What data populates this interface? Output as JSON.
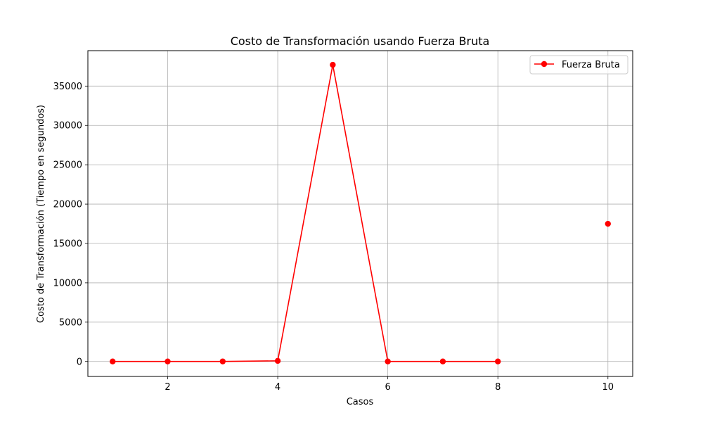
{
  "chart_data": {
    "type": "line",
    "title": "Costo de Transformación usando Fuerza Bruta",
    "xlabel": "Casos",
    "ylabel": "Costo de Transformación (Tiempo en segundos)",
    "xlim": [
      0.55,
      10.45
    ],
    "ylim": [
      -1900,
      39500
    ],
    "x_ticks": [
      2,
      4,
      6,
      8,
      10
    ],
    "y_ticks": [
      0,
      5000,
      10000,
      15000,
      20000,
      25000,
      30000,
      35000
    ],
    "grid": true,
    "legend_position": "top-right",
    "x": [
      1,
      2,
      3,
      4,
      5,
      6,
      7,
      8,
      10
    ],
    "series": [
      {
        "name": "Fuerza Bruta",
        "color": "#ff0000",
        "marker": "circle",
        "values": [
          5,
          8,
          10,
          80,
          37700,
          5,
          5,
          5,
          17500
        ],
        "line_breaks_before": [
          10
        ]
      }
    ]
  }
}
